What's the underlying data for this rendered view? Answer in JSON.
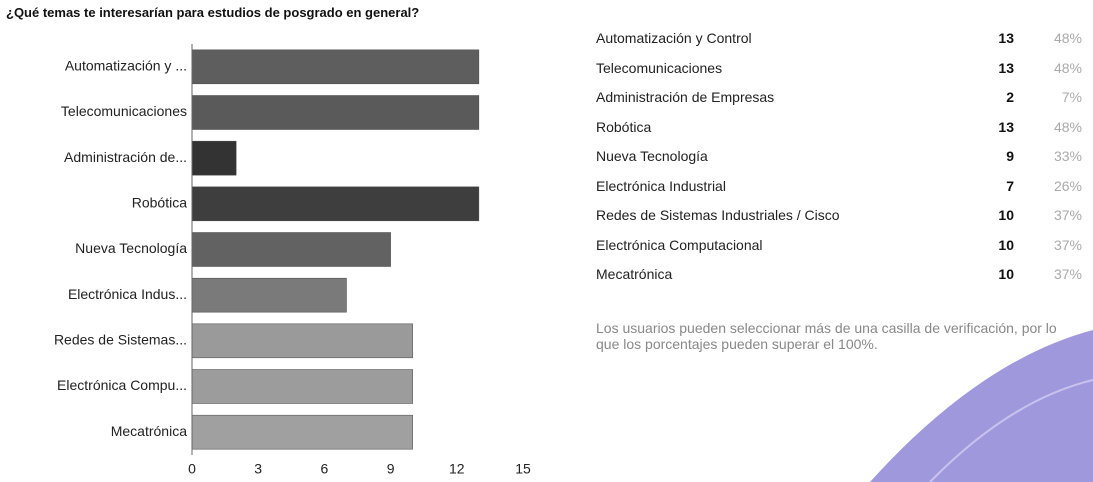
{
  "title": "¿Qué temas te interesarían para estudios de posgrado en general?",
  "chart_data": {
    "type": "hbar",
    "categories": [
      "Automatización y ...",
      "Telecomunicaciones",
      "Administración de...",
      "Robótica",
      "Nueva Tecnología",
      "Electrónica Indus...",
      "Redes de Sistemas...",
      "Electrónica Compu...",
      "Mecatrónica"
    ],
    "values": [
      13,
      13,
      2,
      13,
      9,
      7,
      10,
      10,
      10
    ],
    "colors": [
      "#5e5e5e",
      "#5a5a5a",
      "#333333",
      "#3e3e3e",
      "#626262",
      "#7a7a7a",
      "#9a9a9a",
      "#9c9c9c",
      "#a0a0a0"
    ],
    "xlim": [
      0,
      15
    ],
    "xticks": [
      0,
      3,
      6,
      9,
      12,
      15
    ],
    "grid": false
  },
  "table": {
    "rows": [
      [
        "Automatización y Control",
        "13",
        "48%"
      ],
      [
        "Telecomunicaciones",
        "13",
        "48%"
      ],
      [
        "Administración de Empresas",
        "2",
        "7%"
      ],
      [
        "Robótica",
        "13",
        "48%"
      ],
      [
        "Nueva Tecnología",
        "9",
        "33%"
      ],
      [
        "Electrónica Industrial",
        "7",
        "26%"
      ],
      [
        "Redes de Sistemas Industriales / Cisco",
        "10",
        "37%"
      ],
      [
        "Electrónica Computacional",
        "10",
        "37%"
      ],
      [
        "Mecatrónica",
        "10",
        "37%"
      ]
    ]
  },
  "note": "Los usuarios pueden seleccionar más de una casilla de verificación, por lo que los porcentajes pueden superar el 100%."
}
